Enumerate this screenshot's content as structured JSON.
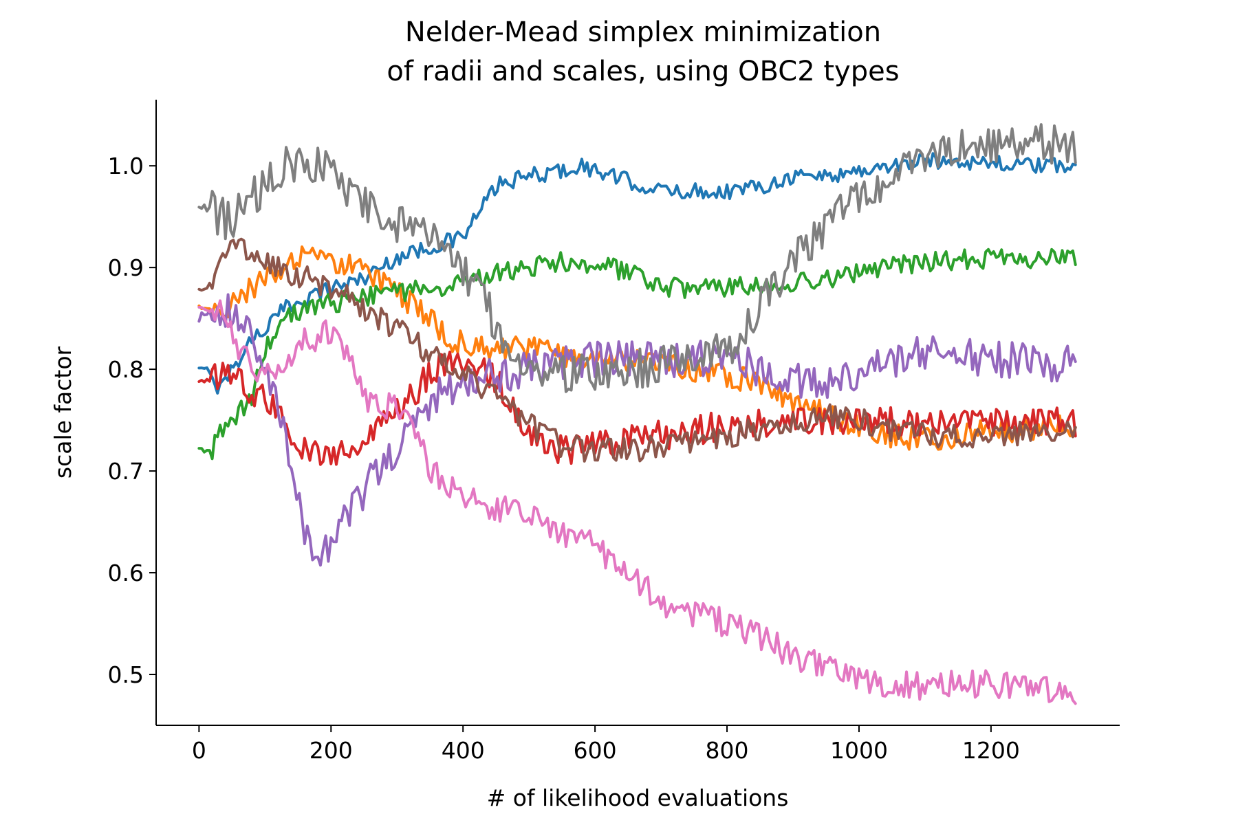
{
  "chart_data": {
    "type": "line",
    "title": "Nelder-Mead simplex minimization\nof radii and scales, using OBC2 types",
    "xlabel": "# of likelihood evaluations",
    "ylabel": "scale factor",
    "xlim": [
      -65,
      1395
    ],
    "ylim": [
      0.45,
      1.065
    ],
    "xticks": [
      0,
      200,
      400,
      600,
      800,
      1000,
      1200
    ],
    "xtick_labels": [
      "0",
      "200",
      "400",
      "600",
      "800",
      "1000",
      "1200"
    ],
    "yticks": [
      0.5,
      0.6,
      0.7,
      0.8,
      0.9,
      1.0
    ],
    "ytick_labels": [
      "0.5",
      "0.6",
      "0.7",
      "0.8",
      "0.9",
      "1.0"
    ],
    "grid": false,
    "legend": "none",
    "colors": [
      "#1f77b4",
      "#ff7f0e",
      "#2ca02c",
      "#d62728",
      "#9467bd",
      "#8c564b",
      "#e377c2",
      "#7f7f7f"
    ],
    "series": [
      {
        "color": "#1f77b4",
        "x": [
          0,
          15,
          30,
          50,
          80,
          100,
          130,
          160,
          200,
          250,
          300,
          350,
          400,
          420,
          450,
          500,
          550,
          580,
          600,
          650,
          700,
          750,
          800,
          850,
          900,
          950,
          1000,
          1050,
          1100,
          1150,
          1200,
          1250,
          1300,
          1330
        ],
        "y": [
          0.8,
          0.8,
          0.78,
          0.8,
          0.83,
          0.84,
          0.86,
          0.87,
          0.88,
          0.89,
          0.91,
          0.92,
          0.93,
          0.95,
          0.98,
          0.99,
          0.995,
          1.0,
          0.995,
          0.985,
          0.975,
          0.975,
          0.975,
          0.98,
          0.99,
          0.99,
          0.995,
          1.0,
          1.005,
          1.005,
          1.003,
          1.0,
          1.0,
          1.0
        ],
        "noise": 0.008
      },
      {
        "color": "#ff7f0e",
        "x": [
          0,
          20,
          40,
          60,
          80,
          100,
          130,
          160,
          200,
          250,
          290,
          330,
          380,
          420,
          450,
          500,
          550,
          600,
          650,
          700,
          750,
          800,
          850,
          900,
          950,
          1000,
          1050,
          1100,
          1150,
          1200,
          1250,
          1300,
          1330
        ],
        "y": [
          0.86,
          0.86,
          0.86,
          0.87,
          0.88,
          0.89,
          0.9,
          0.91,
          0.905,
          0.9,
          0.88,
          0.86,
          0.83,
          0.82,
          0.82,
          0.82,
          0.815,
          0.81,
          0.81,
          0.805,
          0.8,
          0.795,
          0.785,
          0.77,
          0.755,
          0.745,
          0.735,
          0.73,
          0.735,
          0.74,
          0.74,
          0.745,
          0.745
        ],
        "noise": 0.012
      },
      {
        "color": "#2ca02c",
        "x": [
          0,
          10,
          20,
          30,
          50,
          80,
          100,
          130,
          160,
          200,
          250,
          300,
          350,
          400,
          450,
          500,
          550,
          600,
          650,
          700,
          750,
          800,
          850,
          900,
          950,
          1000,
          1050,
          1100,
          1150,
          1200,
          1250,
          1300,
          1330
        ],
        "y": [
          0.72,
          0.72,
          0.72,
          0.74,
          0.75,
          0.77,
          0.82,
          0.85,
          0.86,
          0.865,
          0.87,
          0.875,
          0.88,
          0.885,
          0.895,
          0.9,
          0.905,
          0.905,
          0.895,
          0.88,
          0.88,
          0.88,
          0.882,
          0.885,
          0.888,
          0.895,
          0.9,
          0.905,
          0.908,
          0.908,
          0.908,
          0.908,
          0.908
        ],
        "noise": 0.01
      },
      {
        "color": "#d62728",
        "x": [
          0,
          20,
          40,
          60,
          80,
          100,
          120,
          150,
          180,
          200,
          230,
          260,
          300,
          330,
          360,
          400,
          430,
          460,
          500,
          530,
          560,
          600,
          650,
          700,
          750,
          800,
          850,
          900,
          950,
          1000,
          1050,
          1100,
          1150,
          1200,
          1250,
          1300,
          1330
        ],
        "y": [
          0.79,
          0.79,
          0.8,
          0.79,
          0.78,
          0.77,
          0.76,
          0.73,
          0.715,
          0.715,
          0.72,
          0.735,
          0.76,
          0.78,
          0.8,
          0.81,
          0.8,
          0.78,
          0.74,
          0.72,
          0.72,
          0.725,
          0.73,
          0.735,
          0.74,
          0.745,
          0.748,
          0.75,
          0.75,
          0.75,
          0.748,
          0.748,
          0.748,
          0.748,
          0.748,
          0.748,
          0.748
        ],
        "noise": 0.015
      },
      {
        "color": "#9467bd",
        "x": [
          0,
          20,
          40,
          60,
          80,
          100,
          120,
          140,
          160,
          180,
          200,
          230,
          260,
          300,
          330,
          360,
          400,
          450,
          500,
          550,
          600,
          650,
          700,
          750,
          800,
          850,
          900,
          950,
          1000,
          1050,
          1100,
          1150,
          1200,
          1250,
          1300,
          1330
        ],
        "y": [
          0.85,
          0.86,
          0.86,
          0.85,
          0.83,
          0.8,
          0.76,
          0.7,
          0.64,
          0.62,
          0.63,
          0.66,
          0.69,
          0.72,
          0.75,
          0.775,
          0.79,
          0.795,
          0.8,
          0.805,
          0.81,
          0.81,
          0.81,
          0.81,
          0.81,
          0.8,
          0.79,
          0.785,
          0.795,
          0.81,
          0.815,
          0.815,
          0.81,
          0.808,
          0.805,
          0.805
        ],
        "noise": 0.018
      },
      {
        "color": "#8c564b",
        "x": [
          0,
          15,
          30,
          50,
          80,
          100,
          130,
          160,
          200,
          250,
          300,
          350,
          400,
          450,
          500,
          550,
          600,
          650,
          700,
          750,
          800,
          850,
          900,
          950,
          1000,
          1050,
          1100,
          1150,
          1200,
          1250,
          1300,
          1330
        ],
        "y": [
          0.88,
          0.88,
          0.91,
          0.92,
          0.915,
          0.905,
          0.895,
          0.89,
          0.88,
          0.86,
          0.84,
          0.815,
          0.795,
          0.775,
          0.745,
          0.725,
          0.72,
          0.72,
          0.725,
          0.73,
          0.735,
          0.74,
          0.75,
          0.755,
          0.75,
          0.74,
          0.735,
          0.735,
          0.735,
          0.737,
          0.737,
          0.737
        ],
        "noise": 0.012
      },
      {
        "color": "#e377c2",
        "x": [
          0,
          20,
          40,
          60,
          80,
          100,
          130,
          160,
          200,
          230,
          250,
          280,
          300,
          330,
          350,
          400,
          450,
          500,
          550,
          600,
          650,
          700,
          750,
          800,
          850,
          900,
          950,
          1000,
          1050,
          1100,
          1150,
          1200,
          1250,
          1300,
          1330
        ],
        "y": [
          0.86,
          0.86,
          0.85,
          0.82,
          0.8,
          0.79,
          0.81,
          0.83,
          0.835,
          0.81,
          0.77,
          0.765,
          0.76,
          0.74,
          0.7,
          0.675,
          0.665,
          0.655,
          0.64,
          0.625,
          0.6,
          0.57,
          0.56,
          0.55,
          0.535,
          0.52,
          0.505,
          0.495,
          0.49,
          0.488,
          0.49,
          0.49,
          0.487,
          0.485,
          0.485
        ],
        "noise": 0.014
      },
      {
        "color": "#7f7f7f",
        "x": [
          0,
          15,
          30,
          50,
          70,
          100,
          130,
          160,
          200,
          230,
          260,
          300,
          330,
          360,
          400,
          430,
          460,
          500,
          550,
          600,
          650,
          700,
          750,
          800,
          830,
          860,
          900,
          950,
          1000,
          1050,
          1100,
          1150,
          1200,
          1250,
          1300,
          1330
        ],
        "y": [
          0.96,
          0.96,
          0.95,
          0.945,
          0.96,
          0.98,
          1.0,
          1.005,
          0.995,
          0.975,
          0.955,
          0.945,
          0.93,
          0.925,
          0.9,
          0.87,
          0.83,
          0.8,
          0.795,
          0.8,
          0.8,
          0.805,
          0.81,
          0.82,
          0.84,
          0.87,
          0.91,
          0.94,
          0.97,
          0.99,
          1.005,
          1.015,
          1.02,
          1.025,
          1.02,
          1.018
        ],
        "noise": 0.02
      }
    ]
  }
}
